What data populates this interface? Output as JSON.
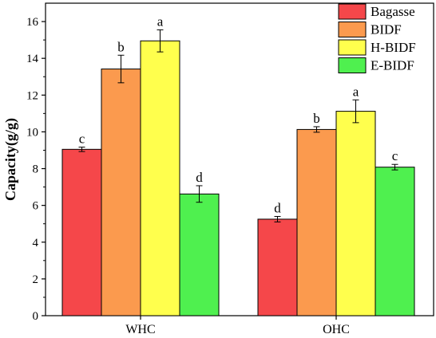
{
  "chart_data": {
    "type": "bar",
    "title": "",
    "xlabel": "",
    "ylabel": "Capacity(g/g)",
    "ylim": [
      0,
      17
    ],
    "yticks": [
      0,
      2,
      4,
      6,
      8,
      10,
      12,
      14,
      16
    ],
    "categories": [
      "WHC",
      "OHC"
    ],
    "legend_position": "top-right",
    "grid": false,
    "series": [
      {
        "name": "Bagasse",
        "color": "#f5474a",
        "values": [
          9.05,
          5.25
        ],
        "errors": [
          0.12,
          0.15
        ],
        "labels": [
          "c",
          "d"
        ]
      },
      {
        "name": "BIDF",
        "color": "#fb9a4e",
        "values": [
          13.42,
          10.13
        ],
        "errors": [
          0.75,
          0.15
        ],
        "labels": [
          "b",
          "b"
        ]
      },
      {
        "name": "H-BIDF",
        "color": "#ffff4d",
        "values": [
          14.95,
          11.12
        ],
        "errors": [
          0.6,
          0.62
        ],
        "labels": [
          "a",
          "a"
        ]
      },
      {
        "name": "E-BIDF",
        "color": "#4ff04f",
        "values": [
          6.62,
          8.08
        ],
        "errors": [
          0.45,
          0.15
        ],
        "labels": [
          "d",
          "c"
        ]
      }
    ]
  }
}
